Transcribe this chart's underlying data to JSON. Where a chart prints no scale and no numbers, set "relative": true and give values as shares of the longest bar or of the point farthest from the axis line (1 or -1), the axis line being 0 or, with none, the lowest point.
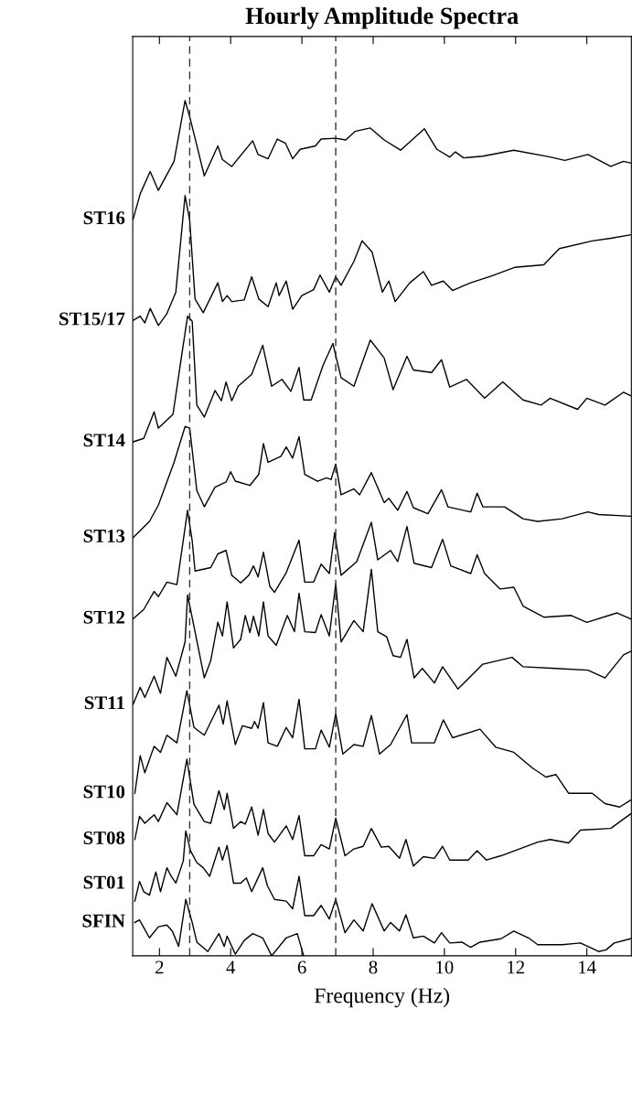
{
  "chart_data": {
    "type": "line",
    "title": "Hourly Amplitude Spectra",
    "xlabel": "Frequency (Hz)",
    "relative": true,
    "xlim": [
      1.25,
      15.25
    ],
    "xticks": [
      2,
      4,
      6,
      8,
      10,
      12,
      14
    ],
    "tick_labels": "x",
    "grid": false,
    "legend": false,
    "marker": "none",
    "line_style": "solid",
    "ref_lines": [
      {
        "axis": "x",
        "value": 2.85,
        "label": null,
        "color": "#333333",
        "line_style": "dashed"
      },
      {
        "axis": "x",
        "value": 6.95,
        "label": null,
        "color": "#333333",
        "line_style": "dashed"
      }
    ],
    "series": [
      {
        "name": "ST16",
        "color": "#000000",
        "x": [
          1.26,
          1.46,
          1.74,
          1.97,
          2.41,
          2.72,
          2.85,
          3.0,
          3.26,
          3.64,
          3.77,
          4.03,
          4.62,
          4.77,
          5.05,
          5.31,
          5.54,
          5.74,
          5.95,
          6.38,
          6.54,
          6.95,
          7.23,
          7.49,
          7.92,
          8.31,
          8.77,
          9.44,
          9.79,
          10.15,
          10.31,
          10.54,
          11.08,
          11.95,
          12.97,
          13.38,
          14.03,
          14.67,
          15.03,
          15.23
        ],
        "values": [
          0.861,
          0.891,
          0.917,
          0.895,
          0.929,
          1.0,
          0.981,
          0.956,
          0.912,
          0.947,
          0.931,
          0.923,
          0.953,
          0.937,
          0.932,
          0.955,
          0.95,
          0.932,
          0.943,
          0.947,
          0.955,
          0.956,
          0.954,
          0.964,
          0.968,
          0.954,
          0.942,
          0.967,
          0.943,
          0.934,
          0.94,
          0.933,
          0.935,
          0.942,
          0.934,
          0.93,
          0.937,
          0.923,
          0.929,
          0.927
        ]
      },
      {
        "name": "ST15/17",
        "color": "#000000",
        "x": [
          1.26,
          1.46,
          1.59,
          1.74,
          1.97,
          2.21,
          2.46,
          2.72,
          2.85,
          3.0,
          3.23,
          3.64,
          3.77,
          3.9,
          4.03,
          4.38,
          4.59,
          4.79,
          5.05,
          5.28,
          5.36,
          5.56,
          5.74,
          6.0,
          6.33,
          6.51,
          6.77,
          6.95,
          7.1,
          7.46,
          7.69,
          7.97,
          8.26,
          8.44,
          8.62,
          9.03,
          9.41,
          9.64,
          9.97,
          10.23,
          10.74,
          11.33,
          11.97,
          12.79,
          13.23,
          14.15,
          14.67,
          15.23
        ],
        "values": [
          0.743,
          0.748,
          0.74,
          0.757,
          0.737,
          0.751,
          0.776,
          0.889,
          0.86,
          0.768,
          0.752,
          0.787,
          0.765,
          0.772,
          0.765,
          0.767,
          0.794,
          0.768,
          0.759,
          0.787,
          0.772,
          0.789,
          0.756,
          0.772,
          0.779,
          0.796,
          0.776,
          0.794,
          0.784,
          0.812,
          0.836,
          0.823,
          0.776,
          0.789,
          0.765,
          0.787,
          0.8,
          0.784,
          0.789,
          0.778,
          0.787,
          0.795,
          0.805,
          0.808,
          0.827,
          0.836,
          0.839,
          0.843
        ]
      },
      {
        "name": "ST14",
        "color": "#000000",
        "x": [
          1.26,
          1.56,
          1.85,
          1.97,
          2.38,
          2.62,
          2.79,
          2.92,
          3.05,
          3.26,
          3.56,
          3.74,
          3.87,
          4.03,
          4.21,
          4.59,
          4.9,
          5.15,
          5.44,
          5.69,
          5.92,
          6.05,
          6.26,
          6.59,
          6.87,
          7.1,
          7.46,
          7.92,
          8.31,
          8.56,
          8.95,
          9.13,
          9.64,
          9.92,
          10.15,
          10.62,
          11.13,
          11.64,
          12.21,
          12.72,
          12.97,
          13.74,
          14.0,
          14.51,
          15.03,
          15.23
        ],
        "values": [
          0.601,
          0.605,
          0.636,
          0.617,
          0.633,
          0.701,
          0.748,
          0.742,
          0.644,
          0.63,
          0.661,
          0.649,
          0.671,
          0.649,
          0.666,
          0.68,
          0.714,
          0.666,
          0.674,
          0.66,
          0.688,
          0.65,
          0.65,
          0.69,
          0.716,
          0.676,
          0.666,
          0.72,
          0.699,
          0.662,
          0.701,
          0.685,
          0.682,
          0.697,
          0.665,
          0.674,
          0.652,
          0.671,
          0.65,
          0.644,
          0.652,
          0.639,
          0.652,
          0.644,
          0.659,
          0.655
        ]
      },
      {
        "name": "ST13",
        "color": "#000000",
        "x": [
          1.26,
          1.72,
          1.97,
          2.41,
          2.72,
          2.85,
          3.05,
          3.26,
          3.56,
          3.87,
          4.0,
          4.13,
          4.54,
          4.79,
          4.92,
          5.05,
          5.41,
          5.56,
          5.74,
          5.92,
          6.08,
          6.44,
          6.69,
          6.82,
          6.95,
          7.1,
          7.46,
          7.62,
          7.95,
          8.31,
          8.44,
          8.69,
          8.95,
          9.13,
          9.54,
          9.92,
          10.1,
          10.74,
          10.92,
          11.08,
          11.69,
          12.21,
          12.62,
          13.31,
          14.03,
          14.33,
          15.23
        ],
        "values": [
          0.489,
          0.508,
          0.527,
          0.577,
          0.619,
          0.617,
          0.544,
          0.525,
          0.548,
          0.554,
          0.566,
          0.555,
          0.55,
          0.563,
          0.599,
          0.577,
          0.584,
          0.595,
          0.582,
          0.607,
          0.563,
          0.555,
          0.559,
          0.557,
          0.575,
          0.539,
          0.546,
          0.539,
          0.565,
          0.53,
          0.535,
          0.521,
          0.543,
          0.524,
          0.517,
          0.545,
          0.525,
          0.519,
          0.541,
          0.525,
          0.525,
          0.511,
          0.508,
          0.511,
          0.519,
          0.516,
          0.514
        ]
      },
      {
        "name": "ST12",
        "color": "#000000",
        "x": [
          1.26,
          1.56,
          1.85,
          1.97,
          2.21,
          2.49,
          2.79,
          2.92,
          3.0,
          3.44,
          3.64,
          3.87,
          4.03,
          4.28,
          4.51,
          4.64,
          4.77,
          4.92,
          5.1,
          5.23,
          5.56,
          5.92,
          6.08,
          6.33,
          6.54,
          6.77,
          6.92,
          7.1,
          7.54,
          7.95,
          8.13,
          8.49,
          8.69,
          8.95,
          9.15,
          9.64,
          9.95,
          10.18,
          10.74,
          10.92,
          11.13,
          11.56,
          11.95,
          12.21,
          12.79,
          13.56,
          14.0,
          14.85,
          15.23
        ],
        "values": [
          0.394,
          0.405,
          0.426,
          0.42,
          0.437,
          0.434,
          0.521,
          0.485,
          0.45,
          0.454,
          0.47,
          0.474,
          0.445,
          0.436,
          0.445,
          0.456,
          0.443,
          0.472,
          0.432,
          0.425,
          0.448,
          0.486,
          0.437,
          0.437,
          0.458,
          0.447,
          0.495,
          0.445,
          0.461,
          0.507,
          0.463,
          0.474,
          0.461,
          0.502,
          0.459,
          0.454,
          0.487,
          0.456,
          0.447,
          0.469,
          0.447,
          0.429,
          0.431,
          0.409,
          0.396,
          0.398,
          0.39,
          0.401,
          0.394
        ]
      },
      {
        "name": "ST11",
        "color": "#000000",
        "x": [
          1.26,
          1.46,
          1.59,
          1.85,
          2.03,
          2.21,
          2.46,
          2.72,
          2.79,
          2.97,
          3.26,
          3.44,
          3.64,
          3.77,
          3.9,
          4.08,
          4.28,
          4.41,
          4.54,
          4.64,
          4.79,
          4.92,
          5.05,
          5.28,
          5.59,
          5.79,
          5.92,
          6.08,
          6.38,
          6.54,
          6.77,
          6.95,
          7.1,
          7.46,
          7.72,
          7.95,
          8.13,
          8.38,
          8.56,
          8.77,
          8.95,
          9.15,
          9.38,
          9.72,
          9.95,
          10.38,
          11.08,
          11.9,
          12.21,
          13.13,
          14.03,
          14.51,
          15.03,
          15.23
        ],
        "values": [
          0.294,
          0.314,
          0.302,
          0.327,
          0.307,
          0.349,
          0.327,
          0.367,
          0.422,
          0.385,
          0.325,
          0.345,
          0.39,
          0.374,
          0.414,
          0.36,
          0.37,
          0.398,
          0.378,
          0.397,
          0.374,
          0.414,
          0.374,
          0.363,
          0.398,
          0.379,
          0.424,
          0.379,
          0.378,
          0.399,
          0.374,
          0.435,
          0.367,
          0.392,
          0.379,
          0.452,
          0.379,
          0.373,
          0.351,
          0.349,
          0.37,
          0.325,
          0.336,
          0.319,
          0.338,
          0.312,
          0.341,
          0.349,
          0.338,
          0.336,
          0.334,
          0.325,
          0.352,
          0.356
        ]
      },
      {
        "name": "ST10",
        "color": "#000000",
        "x": [
          1.31,
          1.46,
          1.59,
          1.85,
          2.03,
          2.21,
          2.49,
          2.77,
          2.97,
          3.26,
          3.67,
          3.79,
          3.9,
          4.13,
          4.33,
          4.59,
          4.67,
          4.77,
          4.92,
          5.05,
          5.31,
          5.56,
          5.74,
          5.92,
          6.08,
          6.38,
          6.54,
          6.77,
          6.95,
          7.15,
          7.46,
          7.72,
          7.95,
          8.18,
          8.49,
          8.95,
          9.08,
          9.72,
          9.97,
          10.23,
          11.0,
          11.44,
          11.95,
          12.46,
          12.85,
          13.13,
          13.49,
          14.15,
          14.51,
          14.92,
          15.23
        ],
        "values": [
          0.19,
          0.234,
          0.214,
          0.245,
          0.238,
          0.258,
          0.249,
          0.31,
          0.267,
          0.258,
          0.293,
          0.271,
          0.298,
          0.247,
          0.269,
          0.266,
          0.274,
          0.266,
          0.296,
          0.249,
          0.245,
          0.267,
          0.255,
          0.3,
          0.242,
          0.242,
          0.264,
          0.244,
          0.283,
          0.236,
          0.247,
          0.245,
          0.281,
          0.236,
          0.247,
          0.282,
          0.249,
          0.249,
          0.276,
          0.255,
          0.265,
          0.244,
          0.238,
          0.22,
          0.209,
          0.212,
          0.19,
          0.19,
          0.178,
          0.174,
          0.182
        ]
      },
      {
        "name": "ST08",
        "color": "#000000",
        "x": [
          1.31,
          1.44,
          1.59,
          1.85,
          1.97,
          2.21,
          2.49,
          2.77,
          2.97,
          3.26,
          3.44,
          3.67,
          3.82,
          3.9,
          4.08,
          4.28,
          4.41,
          4.59,
          4.77,
          4.92,
          5.05,
          5.23,
          5.56,
          5.74,
          5.92,
          6.08,
          6.33,
          6.54,
          6.77,
          6.95,
          7.21,
          7.46,
          7.72,
          7.95,
          8.23,
          8.44,
          8.74,
          8.92,
          9.13,
          9.41,
          9.72,
          9.95,
          10.15,
          10.67,
          10.92,
          11.18,
          11.59,
          12.62,
          12.97,
          13.49,
          13.82,
          14.67,
          15.03,
          15.23
        ],
        "values": [
          0.136,
          0.163,
          0.155,
          0.165,
          0.157,
          0.179,
          0.165,
          0.23,
          0.177,
          0.157,
          0.155,
          0.193,
          0.171,
          0.19,
          0.149,
          0.157,
          0.154,
          0.174,
          0.141,
          0.171,
          0.143,
          0.133,
          0.152,
          0.136,
          0.164,
          0.117,
          0.117,
          0.13,
          0.125,
          0.161,
          0.117,
          0.125,
          0.128,
          0.149,
          0.127,
          0.128,
          0.114,
          0.136,
          0.105,
          0.116,
          0.114,
          0.128,
          0.112,
          0.112,
          0.123,
          0.112,
          0.117,
          0.133,
          0.136,
          0.132,
          0.147,
          0.149,
          0.16,
          0.166
        ]
      },
      {
        "name": "ST01",
        "color": "#000000",
        "x": [
          1.31,
          1.44,
          1.56,
          1.72,
          1.9,
          2.03,
          2.21,
          2.33,
          2.46,
          2.67,
          2.74,
          2.87,
          3.05,
          3.23,
          3.41,
          3.67,
          3.77,
          3.9,
          4.08,
          4.28,
          4.44,
          4.59,
          4.69,
          4.9,
          5.03,
          5.23,
          5.56,
          5.74,
          5.92,
          6.08,
          6.33,
          6.54,
          6.77,
          6.95,
          7.21,
          7.46,
          7.72,
          7.97,
          8.31,
          8.49,
          8.74,
          8.92,
          9.13,
          9.41,
          9.72,
          9.92,
          10.15,
          10.49,
          10.74,
          11.0,
          11.59,
          11.95,
          12.36,
          12.62,
          13.31,
          13.82,
          14.33,
          14.54,
          14.77,
          15.23
        ],
        "values": [
          0.064,
          0.087,
          0.075,
          0.071,
          0.098,
          0.075,
          0.103,
          0.093,
          0.085,
          0.111,
          0.146,
          0.123,
          0.109,
          0.103,
          0.093,
          0.127,
          0.112,
          0.129,
          0.085,
          0.085,
          0.091,
          0.075,
          0.084,
          0.103,
          0.082,
          0.066,
          0.064,
          0.055,
          0.093,
          0.047,
          0.047,
          0.059,
          0.043,
          0.066,
          0.027,
          0.042,
          0.029,
          0.061,
          0.029,
          0.039,
          0.029,
          0.048,
          0.021,
          0.023,
          0.015,
          0.027,
          0.015,
          0.016,
          0.01,
          0.016,
          0.02,
          0.029,
          0.021,
          0.013,
          0.013,
          0.015,
          0.005,
          0.007,
          0.015,
          0.02
        ]
      },
      {
        "name": "SFIN",
        "color": "#000000",
        "x": [
          1.31,
          1.44,
          1.72,
          1.97,
          2.21,
          2.36,
          2.54,
          2.74,
          2.92,
          3.05,
          3.36,
          3.67,
          3.82,
          3.9,
          4.13,
          4.38,
          4.62,
          4.9,
          5.15,
          5.56,
          5.87,
          6.05
        ],
        "values": [
          0.039,
          0.042,
          0.021,
          0.034,
          0.036,
          0.029,
          0.011,
          0.066,
          0.039,
          0.016,
          0.005,
          0.026,
          0.011,
          0.023,
          0.002,
          0.018,
          0.026,
          0.021,
          0.0,
          0.021,
          0.026,
          0.0
        ]
      }
    ]
  }
}
